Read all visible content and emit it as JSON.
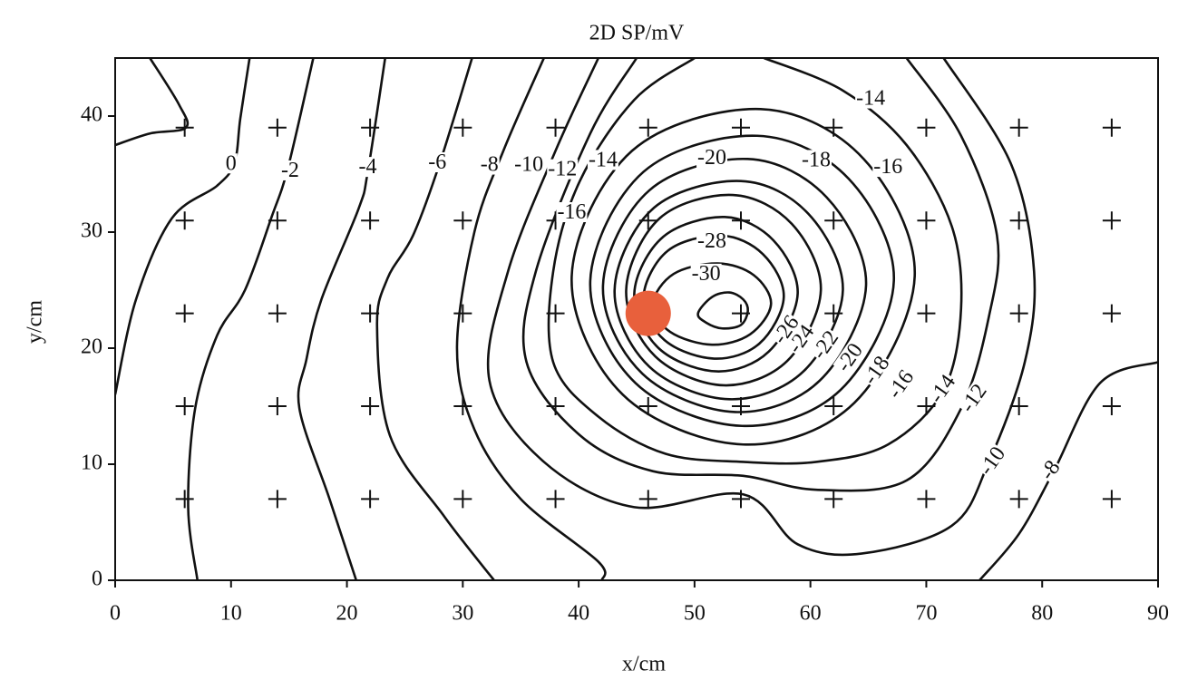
{
  "chart_data": {
    "type": "contour",
    "title": "2D SP/mV",
    "x_label": "x/cm",
    "y_label": "y/cm",
    "xlim": [
      0,
      90
    ],
    "ylim": [
      0,
      45
    ],
    "xticks": [
      0,
      10,
      20,
      30,
      40,
      50,
      60,
      70,
      80,
      90
    ],
    "yticks": [
      0,
      10,
      20,
      30,
      40
    ],
    "line_color": "#111111",
    "marker_x": [
      6,
      14,
      22,
      30,
      38,
      46,
      54,
      62,
      70,
      78,
      86
    ],
    "marker_y": [
      7,
      15,
      23,
      31,
      39
    ],
    "source": {
      "x": 46,
      "y": 23,
      "color": "#e8603c"
    },
    "contours": [
      {
        "level": 0,
        "x": [
          3,
          5.5,
          6.1,
          3,
          0,
          null,
          0,
          1.8,
          4.9,
          8.8,
          10.3,
          10.8,
          11.6
        ],
        "y": [
          45,
          41,
          39,
          38.5,
          37.5,
          null,
          16,
          24.2,
          31.2,
          34,
          36,
          39.8,
          45
        ],
        "label_at": {
          "x": [
            10
          ],
          "y": [
            35.8
          ]
        }
      },
      {
        "level": -2,
        "x": [
          7.1,
          6.3,
          6.9,
          8.8,
          11.2,
          13.5,
          14.9,
          17.1
        ],
        "y": [
          0,
          6.3,
          14.8,
          21.1,
          25,
          31.3,
          35.5,
          45
        ],
        "label_at": {
          "x": [
            15.1
          ],
          "y": [
            35.2
          ]
        }
      },
      {
        "level": -4,
        "x": [
          20.8,
          18.5,
          15.9,
          16.5,
          17.8,
          21,
          21.8,
          23.3
        ],
        "y": [
          0,
          7,
          14.8,
          19,
          24.2,
          32,
          35.2,
          45
        ],
        "label_at": {
          "x": [
            21.8
          ],
          "y": [
            35.5
          ]
        }
      },
      {
        "level": -6,
        "x": [
          32.7,
          28.4,
          23.7,
          22.6,
          23.5,
          25.7,
          28,
          30.8
        ],
        "y": [
          0,
          5.5,
          12.5,
          21.9,
          26,
          29.7,
          35.9,
          45
        ],
        "label_at": {
          "x": [
            27.8
          ],
          "y": [
            35.9
          ]
        }
      },
      {
        "level": -8,
        "x": [
          37,
          33.5,
          31,
          29.5,
          31,
          35,
          41.7,
          42,
          null,
          74.6,
          78,
          81,
          85,
          90
        ],
        "y": [
          45,
          37,
          30,
          20,
          13,
          7,
          1.6,
          0,
          null,
          0,
          4,
          9.4,
          17,
          18.8
        ],
        "label_at": {
          "x": [
            32.3,
            80.8
          ],
          "y": [
            35.7,
            9.4
          ]
        }
      },
      {
        "level": -10,
        "x": [
          41.7,
          38,
          33.9,
          32.3,
          37,
          44.8,
          54.2,
          58.9,
          64.4,
          72.2,
          75.4,
          78.5,
          79.3,
          77.3,
          71.5
        ],
        "y": [
          45,
          37,
          26.6,
          17.2,
          10.2,
          6.3,
          7.4,
          3.1,
          2.3,
          4.7,
          10.2,
          18.8,
          26.6,
          35.9,
          45
        ],
        "label_at": {
          "x": [
            35.7,
            75.8
          ],
          "y": [
            35.7,
            10.2
          ]
        }
      },
      {
        "level": -12,
        "x": [
          45,
          41,
          36.3,
          35.5,
          40.1,
          46.4,
          54.2,
          60.5,
          68.3,
          73,
          75.4,
          76.1,
          73,
          68.3
        ],
        "y": [
          45,
          38.5,
          26.6,
          18.8,
          12.5,
          9.4,
          9,
          7.8,
          8.6,
          14.8,
          22.7,
          29.7,
          38.3,
          45
        ],
        "label_at": {
          "x": [
            38.6,
            74.2
          ],
          "y": [
            35.3,
            15.6
          ]
        }
      },
      {
        "level": -14,
        "x": [
          50,
          44.8,
          40.1,
          37.8,
          37.8,
          41.7,
          47.5,
          54.2,
          60.5,
          66.7,
          71.5,
          73,
          72.2,
          68.3,
          62.8,
          56
        ],
        "y": [
          45,
          41.4,
          34.4,
          26.6,
          18.8,
          14.1,
          10.9,
          10.2,
          10.2,
          11.7,
          16.4,
          23.4,
          30.5,
          37.5,
          42.2,
          45
        ],
        "label_at": {
          "x": [
            42.1,
            65.2,
            71.5
          ],
          "y": [
            36.1,
            41.4,
            16.4
          ]
        }
      },
      {
        "level": -16,
        "closed": true,
        "x": [
          39.4,
          44.6,
          55.7,
          64.6,
          69,
          63.8,
          54.2,
          43.8
        ],
        "y": [
          26.2,
          37,
          40.6,
          36.3,
          26.2,
          15.3,
          11.7,
          16
        ],
        "label_at": {
          "x": [
            39.4,
            66.7,
            67.9
          ],
          "y": [
            31.6,
            35.5,
            16.8
          ]
        }
      },
      {
        "level": -18,
        "closed": true,
        "x": [
          41,
          45.6,
          55.4,
          63.3,
          67.2,
          62.6,
          54.1,
          44.9
        ],
        "y": [
          25.8,
          35.2,
          38.3,
          34.6,
          25.8,
          16.4,
          13.3,
          17
        ],
        "label_at": {
          "x": [
            60.5,
            65.8
          ],
          "y": [
            36.1,
            18
          ]
        }
      },
      {
        "level": -20,
        "closed": true,
        "x": [
          42.1,
          46.1,
          54.6,
          61.4,
          64.8,
          60.8,
          53.5,
          45.5
        ],
        "y": [
          25.4,
          33.6,
          36.3,
          33,
          25.4,
          17.2,
          14.5,
          17.8
        ],
        "label_at": {
          "x": [
            51.5,
            63.5
          ],
          "y": [
            36.3,
            19.1
          ]
        }
      },
      {
        "level": -22,
        "closed": true,
        "x": [
          43.1,
          46.5,
          54,
          59.8,
          62.8,
          59.4,
          53,
          46.1
        ],
        "y": [
          25,
          32.1,
          34.4,
          31.6,
          25,
          18,
          15.6,
          18.4
        ],
        "label_at": {
          "x": [
            61.4
          ],
          "y": [
            20.2
          ]
        }
      },
      {
        "level": -24,
        "closed": true,
        "x": [
          44.1,
          47,
          53.3,
          58.4,
          60.9,
          58,
          52.5,
          46.6
        ],
        "y": [
          25,
          31.2,
          33.2,
          30.7,
          25,
          18.9,
          16.8,
          19.3
        ],
        "label_at": {
          "x": [
            59.3
          ],
          "y": [
            20.7
          ]
        }
      },
      {
        "level": -26,
        "closed": true,
        "x": [
          44.8,
          47.3,
          52.6,
          56.8,
          58.9,
          56.4,
          51.9,
          46.9
        ],
        "y": [
          24.7,
          29.6,
          31.3,
          29.3,
          24.7,
          19.7,
          18,
          20
        ],
        "label_at": {
          "x": [
            58
          ],
          "y": [
            21.5
          ]
        }
      },
      {
        "level": -28,
        "closed": true,
        "x": [
          45.6,
          47.7,
          52.3,
          55.9,
          57.7,
          55.6,
          51.7,
          47.4
        ],
        "y": [
          24.4,
          28.4,
          29.7,
          28.1,
          24.4,
          20.4,
          19.1,
          20.7
        ],
        "label_at": {
          "x": [
            51.5
          ],
          "y": [
            29.1
          ]
        }
      },
      {
        "level": -30,
        "closed": true,
        "x": [
          46.4,
          48.2,
          52,
          55.1,
          56.6,
          54.8,
          51.5,
          47.9
        ],
        "y": [
          23.8,
          26.4,
          27.3,
          26.3,
          23.8,
          21.2,
          20.3,
          21.4
        ],
        "label_at": {
          "x": [
            51
          ],
          "y": [
            26.3
          ]
        }
      },
      {
        "closed": true,
        "x": [
          50.3,
          51.5,
          53,
          54.2,
          54.6,
          54,
          52.4,
          51
        ],
        "y": [
          23,
          24.4,
          24.8,
          24.2,
          23.2,
          22,
          21.7,
          22.2
        ]
      }
    ]
  }
}
